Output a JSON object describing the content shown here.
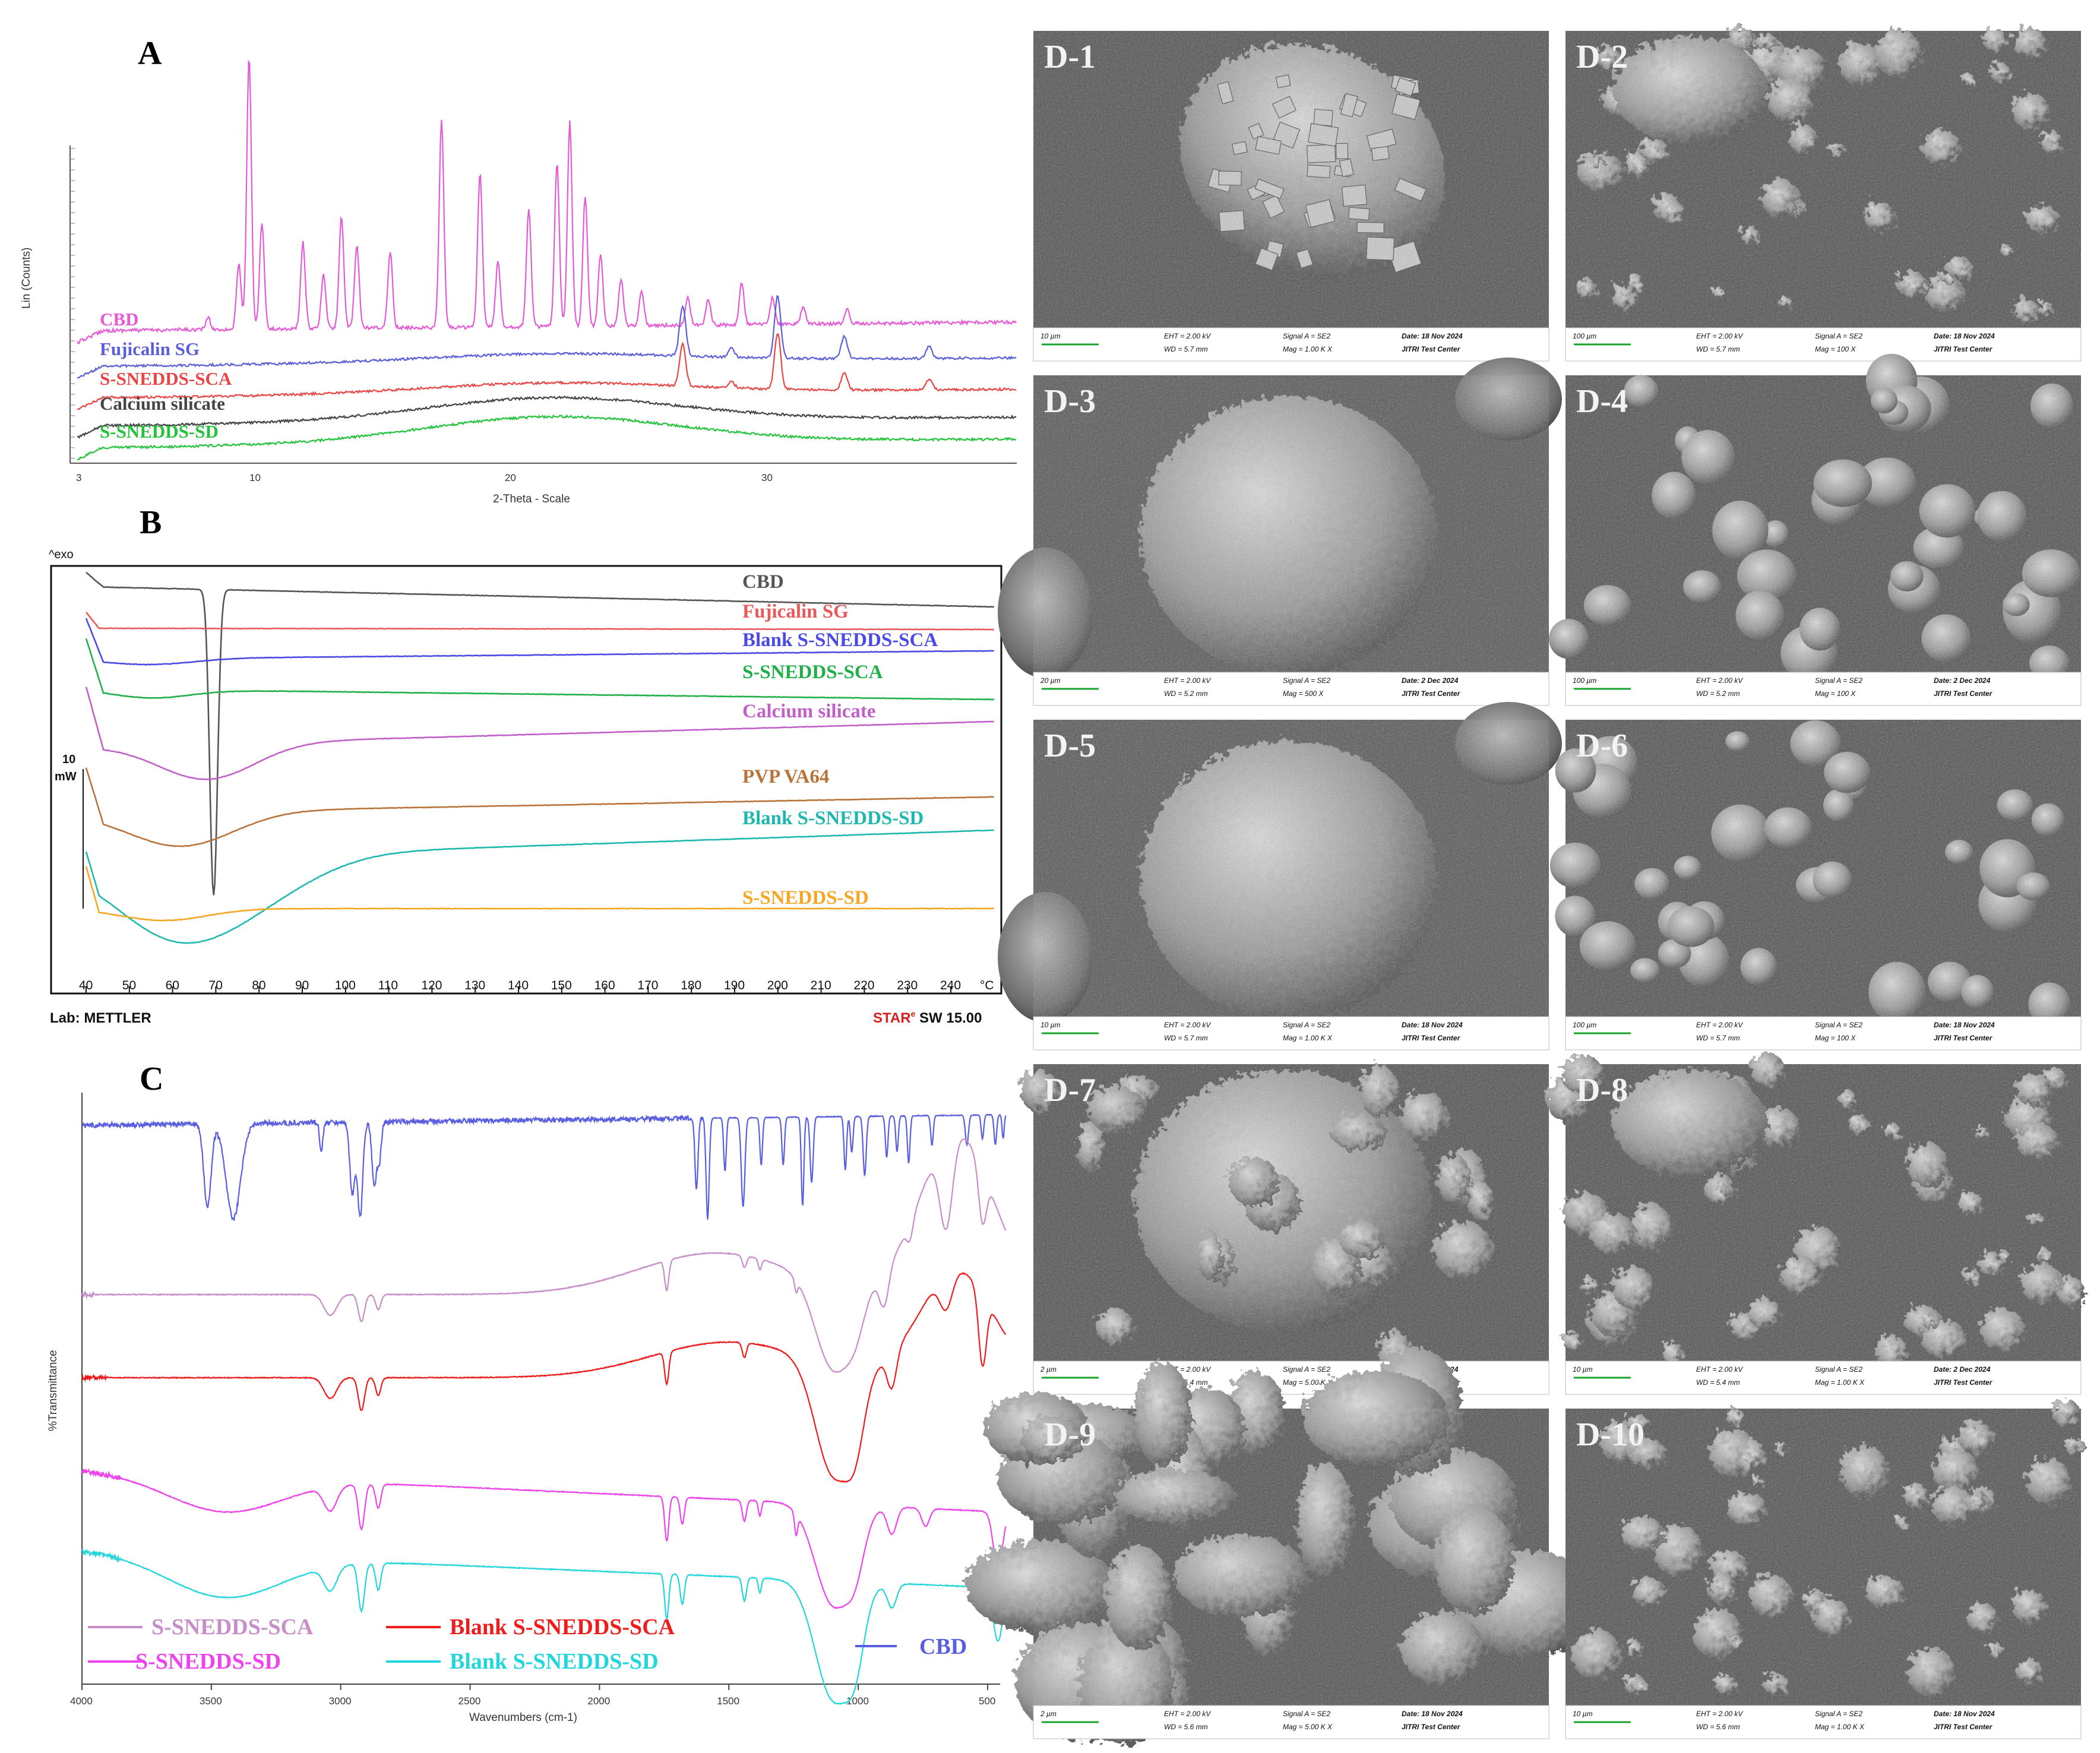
{
  "panel_a": {
    "letter": "A",
    "ylabel": "Lin (Counts)",
    "xlabel": "2-Theta - Scale",
    "ticks": [
      "3",
      "10",
      "20",
      "30"
    ],
    "labels": [
      {
        "text": "CBD",
        "color": "#e55ad6"
      },
      {
        "text": "Fujicalin SG",
        "color": "#5a5ed8"
      },
      {
        "text": "S-SNEDDS-SCA",
        "color": "#e84545"
      },
      {
        "text": "Calcium silicate",
        "color": "#444444"
      },
      {
        "text": "S-SNEDDS-SD",
        "color": "#22c33a"
      }
    ]
  },
  "panel_b": {
    "letter": "B",
    "exo": "^exo",
    "scale_value": "10",
    "scale_unit": "mW",
    "footer_left": "Lab: METTLER",
    "footer_right_brand": "STAR",
    "footer_right_sup": "e",
    "footer_right_sw": " SW 15.00",
    "unit": "°C",
    "ticks": [
      "40",
      "50",
      "60",
      "70",
      "80",
      "90",
      "100",
      "110",
      "120",
      "130",
      "140",
      "150",
      "160",
      "170",
      "180",
      "190",
      "200",
      "210",
      "220",
      "230",
      "240"
    ],
    "labels": [
      {
        "text": "CBD",
        "color": "#555555"
      },
      {
        "text": "Fujicalin SG",
        "color": "#e85a5a"
      },
      {
        "text": "Blank S-SNEDDS-SCA",
        "color": "#4a4ae6"
      },
      {
        "text": "S-SNEDDS-SCA",
        "color": "#1fb04a"
      },
      {
        "text": "Calcium silicate",
        "color": "#c060c8"
      },
      {
        "text": "PVP VA64",
        "color": "#b8743a"
      },
      {
        "text": "Blank S-SNEDDS-SD",
        "color": "#1fb8b0"
      },
      {
        "text": "S-SNEDDS-SD",
        "color": "#f5a623"
      }
    ]
  },
  "panel_c": {
    "letter": "C",
    "ylabel": "%Transmittance",
    "xlabel": "Wavenumbers (cm-1)",
    "ticks": [
      "4000",
      "3500",
      "3000",
      "2500",
      "2000",
      "1500",
      "1000",
      "500"
    ],
    "legend": [
      {
        "text": "S-SNEDDS-SCA",
        "color": "#c88ec8"
      },
      {
        "text": "Blank S-SNEDDS-SCA",
        "color": "#ee1c1c"
      },
      {
        "text": "S-SNEDDS-SD",
        "color": "#ee44ee"
      },
      {
        "text": "Blank S-SNEDDS-SD",
        "color": "#22d6dc"
      },
      {
        "text": "CBD",
        "color": "#5a5ee0"
      }
    ]
  },
  "panel_d": {
    "images": [
      {
        "label": "D-1",
        "scale": "10 µm",
        "eht": "EHT = 2.00 kV",
        "wd": "WD = 5.7 mm",
        "signal": "Signal A = SE2",
        "mag": "Mag = 1.00 K X",
        "date": "Date: 18 Nov 2024",
        "center": "JITRI Test Center"
      },
      {
        "label": "D-2",
        "scale": "100 µm",
        "eht": "EHT = 2.00 kV",
        "wd": "WD = 5.7 mm",
        "signal": "Signal A = SE2",
        "mag": "Mag = 100 X",
        "date": "Date: 18 Nov 2024",
        "center": "JITRI Test Center"
      },
      {
        "label": "D-3",
        "scale": "20 µm",
        "eht": "EHT = 2.00 kV",
        "wd": "WD = 5.2 mm",
        "signal": "Signal A = SE2",
        "mag": "Mag = 500 X",
        "date": "Date: 2 Dec 2024",
        "center": "JITRI Test Center"
      },
      {
        "label": "D-4",
        "scale": "100 µm",
        "eht": "EHT = 2.00 kV",
        "wd": "WD = 5.2 mm",
        "signal": "Signal A = SE2",
        "mag": "Mag = 100 X",
        "date": "Date: 2 Dec 2024",
        "center": "JITRI Test Center"
      },
      {
        "label": "D-5",
        "scale": "10 µm",
        "eht": "EHT = 2.00 kV",
        "wd": "WD = 5.7 mm",
        "signal": "Signal A = SE2",
        "mag": "Mag = 1.00 K X",
        "date": "Date: 18 Nov 2024",
        "center": "JITRI Test Center"
      },
      {
        "label": "D-6",
        "scale": "100 µm",
        "eht": "EHT = 2.00 kV",
        "wd": "WD = 5.7 mm",
        "signal": "Signal A = SE2",
        "mag": "Mag = 100 X",
        "date": "Date: 18 Nov 2024",
        "center": "JITRI Test Center"
      },
      {
        "label": "D-7",
        "scale": "2 µm",
        "eht": "EHT = 2.00 kV",
        "wd": "WD = 5.4 mm",
        "signal": "Signal A = SE2",
        "mag": "Mag = 5.00 K X",
        "date": "Date: 2 Dec 2024",
        "center": "JITRI Test Center"
      },
      {
        "label": "D-8",
        "scale": "10 µm",
        "eht": "EHT = 2.00 kV",
        "wd": "WD = 5.4 mm",
        "signal": "Signal A = SE2",
        "mag": "Mag = 1.00 K X",
        "date": "Date: 2 Dec 2024",
        "center": "JITRI Test Center"
      },
      {
        "label": "D-9",
        "scale": "2 µm",
        "eht": "EHT = 2.00 kV",
        "wd": "WD = 5.6 mm",
        "signal": "Signal A = SE2",
        "mag": "Mag = 5.00 K X",
        "date": "Date: 18 Nov 2024",
        "center": "JITRI Test Center"
      },
      {
        "label": "D-10",
        "scale": "10 µm",
        "eht": "EHT = 2.00 kV",
        "wd": "WD = 5.6 mm",
        "signal": "Signal A = SE2",
        "mag": "Mag = 1.00 K X",
        "date": "Date: 18 Nov 2024",
        "center": "JITRI Test Center"
      }
    ]
  }
}
